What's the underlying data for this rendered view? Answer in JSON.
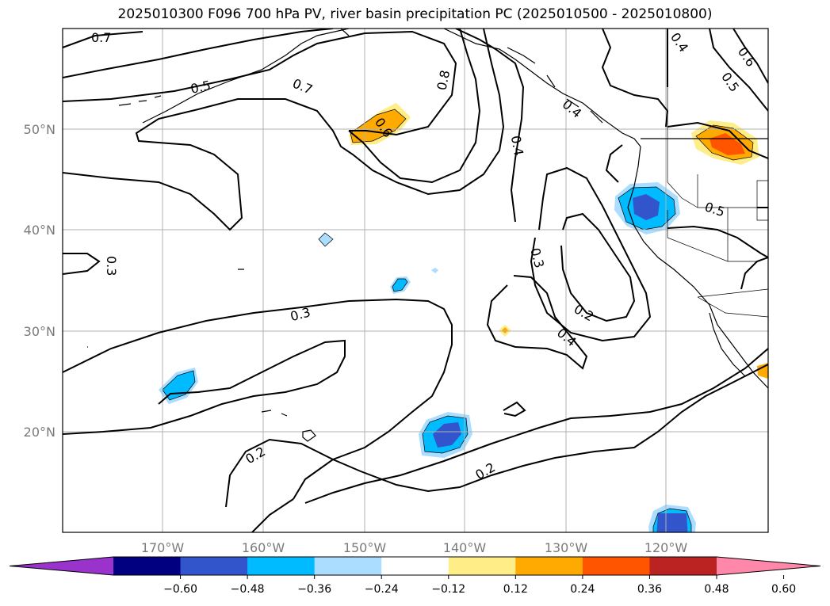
{
  "title": "2025010300 F096 700 hPa PV, river basin precipitation PC (2025010500 - 2025010800)",
  "latitude_labels": [
    "50°N",
    "40°N",
    "30°N",
    "20°N"
  ],
  "longitude_labels": [
    "170°W",
    "160°W",
    "150°W",
    "140°W",
    "130°W",
    "120°W"
  ],
  "contour_labels": [
    "0.7",
    "0.5",
    "0.7",
    "0.8",
    "0.4",
    "0.4",
    "0.6",
    "0.5",
    "0.6",
    "0.4",
    "0.3",
    "0.5",
    "0.3",
    "0.2",
    "0.3",
    "0.4",
    "0.2",
    "0.2"
  ],
  "colorbar": {
    "tick_labels": [
      "−0.60",
      "−0.48",
      "−0.36",
      "−0.24",
      "−0.12",
      "0.12",
      "0.24",
      "0.36",
      "0.48",
      "0.60"
    ],
    "colors": [
      "#9933cc",
      "#000080",
      "#3355cc",
      "#00bbff",
      "#aaddff",
      "#ffffff",
      "#ffee88",
      "#ffaa00",
      "#ff5500",
      "#bb2222",
      "#ff88aa"
    ]
  },
  "map_colors": {
    "frame": "#000000",
    "grid": "#b0b0b0",
    "contour": "#000000"
  }
}
